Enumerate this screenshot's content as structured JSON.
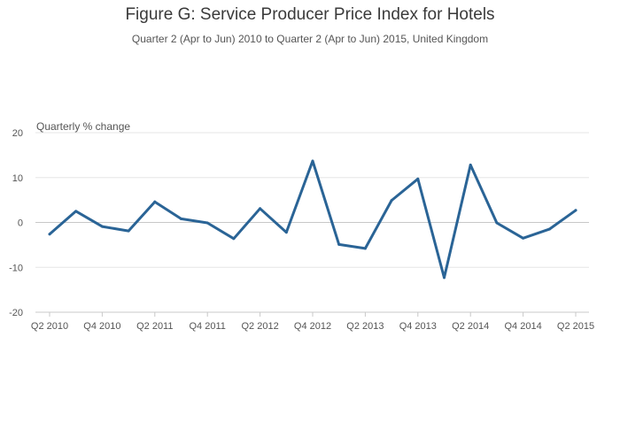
{
  "chart_data": {
    "type": "line",
    "title": "Figure G: Service Producer Price Index for Hotels",
    "subtitle": "Quarter 2 (Apr to Jun) 2010 to Quarter 2 (Apr to Jun) 2015, United Kingdom",
    "ylabel": "Quarterly % change",
    "xlabel": "",
    "ylim": [
      -20,
      20
    ],
    "yticks": [
      20,
      10,
      0,
      -10,
      -20
    ],
    "grid": true,
    "categories": [
      "Q2 2010",
      "Q3 2010",
      "Q4 2010",
      "Q1 2011",
      "Q2 2011",
      "Q3 2011",
      "Q4 2011",
      "Q1 2012",
      "Q2 2012",
      "Q3 2012",
      "Q4 2012",
      "Q1 2013",
      "Q2 2013",
      "Q3 2013",
      "Q4 2013",
      "Q1 2014",
      "Q2 2014",
      "Q3 2014",
      "Q4 2014",
      "Q1 2015",
      "Q2 2015"
    ],
    "xtick_labels": [
      "Q2 2010",
      "Q4 2010",
      "Q2 2011",
      "Q4 2011",
      "Q2 2012",
      "Q4 2012",
      "Q2 2013",
      "Q4 2013",
      "Q2 2014",
      "Q4 2014",
      "Q2 2015"
    ],
    "series": [
      {
        "color": "#2a6496",
        "values": [
          -2.6,
          2.5,
          -0.9,
          -1.9,
          4.6,
          0.8,
          -0.1,
          -3.6,
          3.1,
          -2.2,
          13.7,
          -4.9,
          -5.8,
          4.9,
          9.7,
          -12.3,
          12.8,
          -0.1,
          -3.5,
          -1.5,
          2.7
        ]
      }
    ]
  }
}
